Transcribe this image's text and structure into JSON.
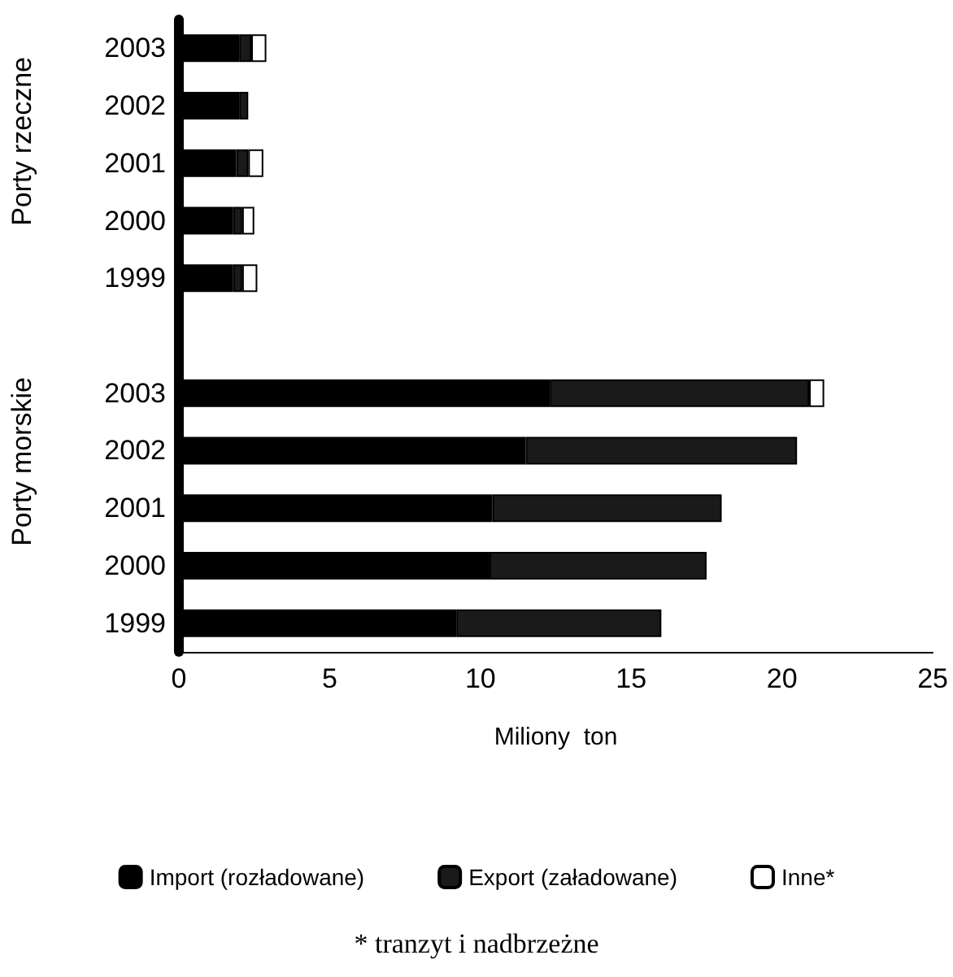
{
  "chart_data": {
    "type": "bar",
    "orientation": "horizontal",
    "stacked": true,
    "xlabel": "Miliony  ton",
    "categories": [
      "2003",
      "2002",
      "2001",
      "2000",
      "1999",
      null,
      "2003",
      "2002",
      "2001",
      "2000",
      "1999"
    ],
    "series": [
      {
        "name": "Import (rozładowane)",
        "color": "#000000",
        "values": [
          2.0,
          2.0,
          1.9,
          1.8,
          1.8,
          null,
          12.3,
          11.5,
          10.4,
          10.3,
          9.2
        ]
      },
      {
        "name": "Export (załadowane)",
        "color": "#1a1a1a",
        "values": [
          0.4,
          0.3,
          0.4,
          0.3,
          0.3,
          null,
          8.6,
          9.0,
          7.6,
          7.2,
          6.8
        ]
      },
      {
        "name": "Inne*",
        "color": "#ffffff",
        "values": [
          0.5,
          0,
          0.5,
          0.4,
          0.5,
          null,
          0.5,
          0,
          0,
          0,
          0
        ]
      }
    ],
    "xlim": [
      0,
      25
    ],
    "xticks": [
      0,
      5,
      10,
      15,
      20,
      25
    ],
    "grid": false,
    "legend": "bottom",
    "annotations": [
      "Porty rzeczne",
      "Porty morskie",
      "* tranzyt i nadbrzeżne"
    ]
  }
}
